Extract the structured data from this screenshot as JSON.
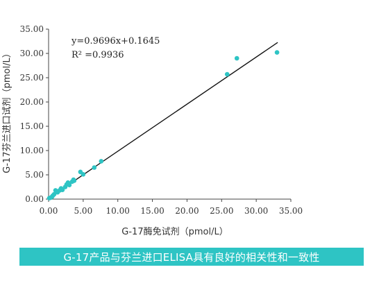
{
  "chart_data": {
    "type": "scatter",
    "xlabel": "G-17酶免试剂（pmol/L）",
    "ylabel": "G-17芬兰进口试剂（pmol/L）",
    "xlim": [
      0,
      35
    ],
    "ylim": [
      0,
      35
    ],
    "x_ticks": [
      "0.00",
      "5.00",
      "10.00",
      "15.00",
      "20.00",
      "25.00",
      "30.00",
      "35.00"
    ],
    "y_ticks": [
      "0.00",
      "5.00",
      "10.00",
      "15.00",
      "20.00",
      "25.00",
      "30.00",
      "35.00"
    ],
    "regression": {
      "slope": 0.9696,
      "intercept": 0.1645,
      "x_range": [
        0.1,
        33.1
      ]
    },
    "equation_text": "y=0.9696x+0.1645",
    "r2_text": "R² =0.9936",
    "point_color": "#2ec4c4",
    "line_color": "#111111",
    "points": [
      [
        0.1,
        0.2
      ],
      [
        0.3,
        0.3
      ],
      [
        0.5,
        0.5
      ],
      [
        0.6,
        0.7
      ],
      [
        0.8,
        1.0
      ],
      [
        1.0,
        1.8
      ],
      [
        1.3,
        1.4
      ],
      [
        1.6,
        1.8
      ],
      [
        1.8,
        2.2
      ],
      [
        2.0,
        1.9
      ],
      [
        2.4,
        2.5
      ],
      [
        2.6,
        3.0
      ],
      [
        2.8,
        3.4
      ],
      [
        3.0,
        2.9
      ],
      [
        3.4,
        3.6
      ],
      [
        3.6,
        4.0
      ],
      [
        3.7,
        3.8
      ],
      [
        4.6,
        5.6
      ],
      [
        5.0,
        5.1
      ],
      [
        6.6,
        6.5
      ],
      [
        7.6,
        7.8
      ],
      [
        25.8,
        25.7
      ],
      [
        27.2,
        29.0
      ],
      [
        33.0,
        30.2
      ]
    ]
  },
  "caption": "G-17产品与芬兰进口ELISA具有良好的相关性和一致性"
}
